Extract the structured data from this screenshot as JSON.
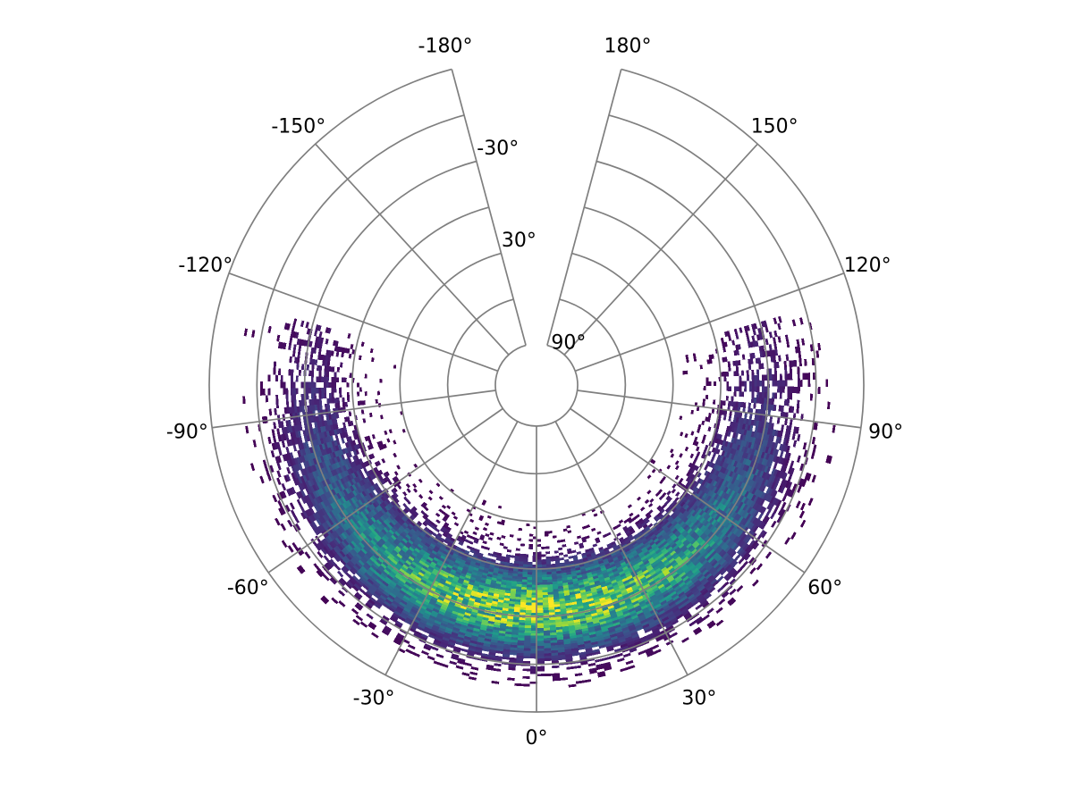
{
  "chart_data": {
    "type": "heatmap",
    "projection": "polar",
    "title": "",
    "colormap": "viridis",
    "grid": true,
    "angular_axis": {
      "range_deg": [
        -180,
        180
      ],
      "zero_direction": "bottom",
      "direction": "counterclockwise",
      "ticks": [
        -180,
        -150,
        -120,
        -90,
        -60,
        -30,
        0,
        30,
        60,
        90,
        120,
        150,
        180
      ],
      "tick_labels": [
        "-180°",
        "-150°",
        "-120°",
        "-90°",
        "-60°",
        "-30°",
        "0°",
        "30°",
        "60°",
        "90°",
        "120°",
        "150°",
        "180°"
      ]
    },
    "radial_axis": {
      "range_deg": [
        90,
        -90
      ],
      "inner_label": "90°",
      "ticks": [
        90,
        60,
        30,
        0,
        -30,
        -60,
        -90
      ],
      "tick_labels": [
        "90°",
        "30°",
        "-30°"
      ],
      "labeled_ticks": [
        90,
        30,
        -30
      ]
    },
    "density_model": {
      "peak": {
        "angle_deg": 0,
        "radial_deg": -25
      },
      "angular_spread_deg": 55,
      "angular_extent_deg": [
        -115,
        115
      ],
      "radial_spread_deg": 18,
      "radial_extent_deg": [
        70,
        -75
      ]
    }
  }
}
